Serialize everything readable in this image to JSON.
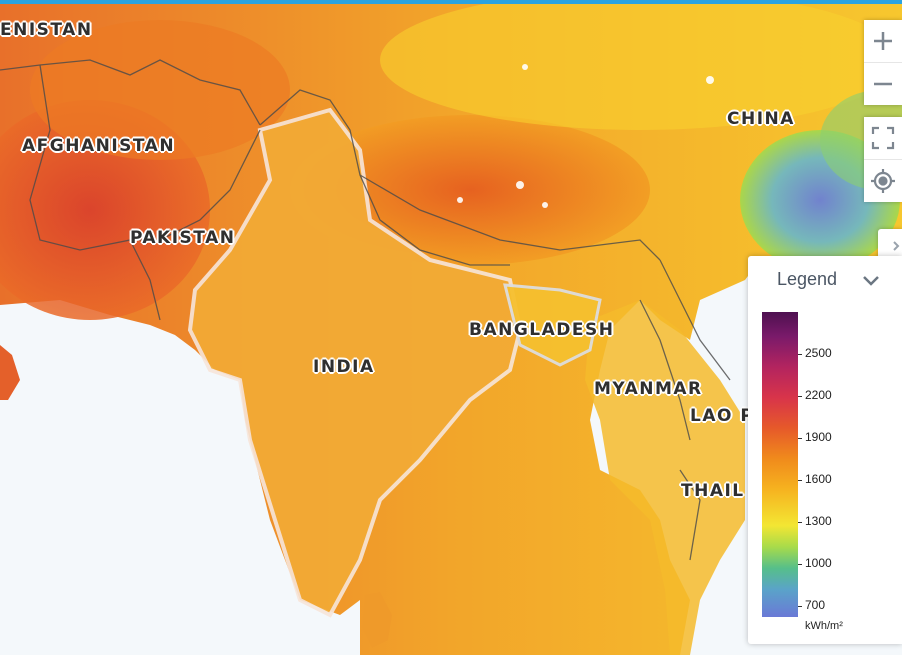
{
  "map": {
    "labels": [
      {
        "key": "turkmenistan",
        "text": "ENISTAN"
      },
      {
        "key": "afghanistan",
        "text": "AFGHANISTAN"
      },
      {
        "key": "pakistan",
        "text": "PAKISTAN"
      },
      {
        "key": "india",
        "text": "INDIA"
      },
      {
        "key": "china",
        "text": "CHINA"
      },
      {
        "key": "bangladesh",
        "text": "BANGLADESH"
      },
      {
        "key": "myanmar",
        "text": "MYANMAR"
      },
      {
        "key": "laos",
        "text": "LAO P"
      },
      {
        "key": "thailand",
        "text": "THAIL"
      }
    ]
  },
  "controls": {
    "zoom_in_icon": "plus-icon",
    "zoom_out_icon": "minus-icon",
    "fullscreen_icon": "fullscreen-icon",
    "locate_icon": "locate-icon"
  },
  "legend": {
    "title": "Legend",
    "values": [
      "2500",
      "2200",
      "1900",
      "1600",
      "1300",
      "1000",
      "700"
    ],
    "unit": "kWh/m²",
    "colors": {
      "max": "#4e1050",
      "high": "#d8344a",
      "mid": "#f6b21f",
      "low_mid": "#f3e633",
      "low": "#56bf8a",
      "min": "#6a79d6"
    }
  },
  "colors": {
    "accent": "#2ba3e0",
    "sea": "#f4f8fb"
  }
}
